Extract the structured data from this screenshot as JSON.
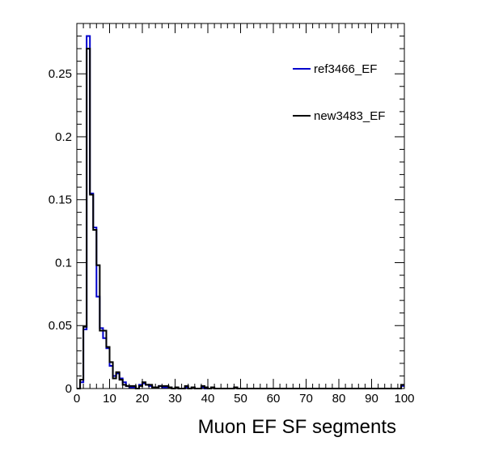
{
  "chart_data": {
    "type": "line",
    "title": "",
    "xlabel": "Muon EF SF segments",
    "ylabel": "",
    "xlim": [
      0,
      100
    ],
    "ylim": [
      0,
      0.29
    ],
    "grid": false,
    "legend_position": "top-right",
    "x_ticks": [
      0,
      10,
      20,
      30,
      40,
      50,
      60,
      70,
      80,
      90,
      100
    ],
    "y_ticks": [
      {
        "value": 0,
        "label": "0"
      },
      {
        "value": 0.05,
        "label": "0.05"
      },
      {
        "value": 0.1,
        "label": "0.1"
      },
      {
        "value": 0.15,
        "label": "0.15"
      },
      {
        "value": 0.2,
        "label": "0.2"
      },
      {
        "value": 0.25,
        "label": "0.25"
      }
    ],
    "bin_edges_start": 0,
    "bin_width": 1,
    "series": [
      {
        "name": "ref3466_EF",
        "color": "#0000cc",
        "values": [
          0.0,
          0.005,
          0.047,
          0.28,
          0.155,
          0.128,
          0.073,
          0.048,
          0.04,
          0.032,
          0.018,
          0.01,
          0.012,
          0.008,
          0.005,
          0.002,
          0.001,
          0.001,
          0.0,
          0.003,
          0.004,
          0.003,
          0.002,
          0.001,
          0.001,
          0.002,
          0.001,
          0.001,
          0.001,
          0.0,
          0.001,
          0.0,
          0.0,
          0.001,
          0.0,
          0.001,
          0.0,
          0.0,
          0.001,
          0.0,
          0.0,
          0.001,
          0.0,
          0.0,
          0.0,
          0.0,
          0.0,
          0.0,
          0.001,
          0.0,
          0.0,
          0.0,
          0.0,
          0.0,
          0.0,
          0.0,
          0.0,
          0.0,
          0.0,
          0.0,
          0.0,
          0.0,
          0.0,
          0.0,
          0.0,
          0.0,
          0.0,
          0.0,
          0.0,
          0.0,
          0.0,
          0.0,
          0.0,
          0.0,
          0.0,
          0.0,
          0.0,
          0.0,
          0.0,
          0.0,
          0.0,
          0.0,
          0.0,
          0.0,
          0.0,
          0.0,
          0.0,
          0.0,
          0.0,
          0.0,
          0.0,
          0.0,
          0.0,
          0.0,
          0.0,
          0.0,
          0.0,
          0.0,
          0.0,
          0.002
        ]
      },
      {
        "name": "new3483_EF",
        "color": "#000000",
        "values": [
          0.0,
          0.007,
          0.049,
          0.27,
          0.154,
          0.126,
          0.098,
          0.046,
          0.046,
          0.033,
          0.021,
          0.008,
          0.013,
          0.007,
          0.003,
          0.002,
          0.002,
          0.002,
          0.0,
          0.002,
          0.005,
          0.003,
          0.003,
          0.001,
          0.001,
          0.002,
          0.002,
          0.002,
          0.001,
          0.0,
          0.001,
          0.0,
          0.0,
          0.002,
          0.0,
          0.001,
          0.0,
          0.0,
          0.002,
          0.001,
          0.0,
          0.001,
          0.0,
          0.0,
          0.0,
          0.0,
          0.0,
          0.0,
          0.001,
          0.0,
          0.0,
          0.0,
          0.0,
          0.0,
          0.0,
          0.0,
          0.0,
          0.0,
          0.0,
          0.0,
          0.0,
          0.0,
          0.0,
          0.0,
          0.0,
          0.0,
          0.0,
          0.0,
          0.0,
          0.0,
          0.0,
          0.0,
          0.0,
          0.0,
          0.0,
          0.0,
          0.0,
          0.0,
          0.0,
          0.0,
          0.0,
          0.0,
          0.0,
          0.0,
          0.0,
          0.0,
          0.0,
          0.0,
          0.0,
          0.0,
          0.0,
          0.0,
          0.0,
          0.0,
          0.0,
          0.0,
          0.0,
          0.0,
          0.0,
          0.003
        ]
      }
    ]
  }
}
